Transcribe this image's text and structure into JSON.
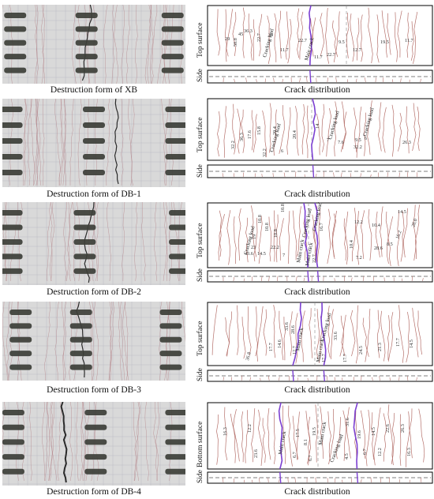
{
  "rows": [
    {
      "photo_caption": "Destruction form of XB",
      "sketch_caption": "Crack distribution",
      "surface_label": "Top surface",
      "side_label": "Side",
      "numbers": [
        "29",
        "50.8",
        "45",
        "36.3",
        "22.7",
        "39",
        "11.7",
        "22.7",
        "11.7",
        "22.7",
        "9.5",
        "12.7",
        "19.5",
        "11.7"
      ],
      "tags": [
        "Cracking load",
        "Main crack"
      ]
    },
    {
      "photo_caption": "Destruction form of DB-1",
      "sketch_caption": "Crack distribution",
      "surface_label": "Top surface",
      "side_label": "Side",
      "numbers": [
        "32.2",
        "36.3",
        "17.6",
        "15.8",
        "32.2",
        "20.4",
        "6",
        "20.4",
        "14",
        "7",
        "7.6",
        "9.5",
        "6",
        "32.2",
        "26.3"
      ],
      "tags": [
        "Cracking load",
        "Cracking load",
        "Cracking load"
      ]
    },
    {
      "photo_caption": "Destruction form of DB-2",
      "sketch_caption": "Crack distribution",
      "surface_label": "Top surface",
      "side_label": "Side",
      "numbers": [
        "19",
        "10.8",
        "10.8",
        "10.8",
        "10.8",
        "43.6",
        "23",
        "14.5",
        "22.2",
        "7",
        "22.7",
        "16.7",
        "12.2",
        "10.4",
        "10.4",
        "7.2",
        "14.5",
        "28.0",
        "16.2",
        "8.5",
        "28.6"
      ],
      "tags": [
        "Cracking load",
        "Main crack",
        "Main crack",
        "Cracking load",
        "Cracking load"
      ]
    },
    {
      "photo_caption": "Destruction form of DB-3",
      "sketch_caption": "Crack distribution",
      "surface_label": "Top surface",
      "side_label": "Side",
      "numbers": [
        "36.8",
        "17.7",
        "14.6",
        "33.6",
        "28.6",
        "12.7",
        "17.7",
        "17.7",
        "33.6",
        "24.5",
        "21.3",
        "17.7",
        "14.5"
      ],
      "tags": [
        "Main crack",
        "Main crack",
        "Cracking load"
      ]
    },
    {
      "photo_caption": "Destruction form of DB-4",
      "sketch_caption": "Crack distribution",
      "surface_label": "Bottom surface",
      "side_label": "Side",
      "numbers": [
        "16.3",
        "12.2",
        "23.6",
        "6.7",
        "17.5",
        "8.1",
        "19.5",
        "6.7",
        "4.5",
        "31.6",
        "19.6",
        "6.7",
        "14.5",
        "22.6",
        "12.2",
        "26.3",
        "16.3"
      ],
      "tags": [
        "Main crack",
        "Main crack",
        "Cracking load"
      ]
    }
  ],
  "colors": {
    "crack": "#b5706a",
    "main_crack": "#7b3fd1",
    "specimen_gray": "#d9d9d9",
    "grid_line": "#9c9cb0",
    "strap": "#3d3f38",
    "outline": "#000000"
  }
}
